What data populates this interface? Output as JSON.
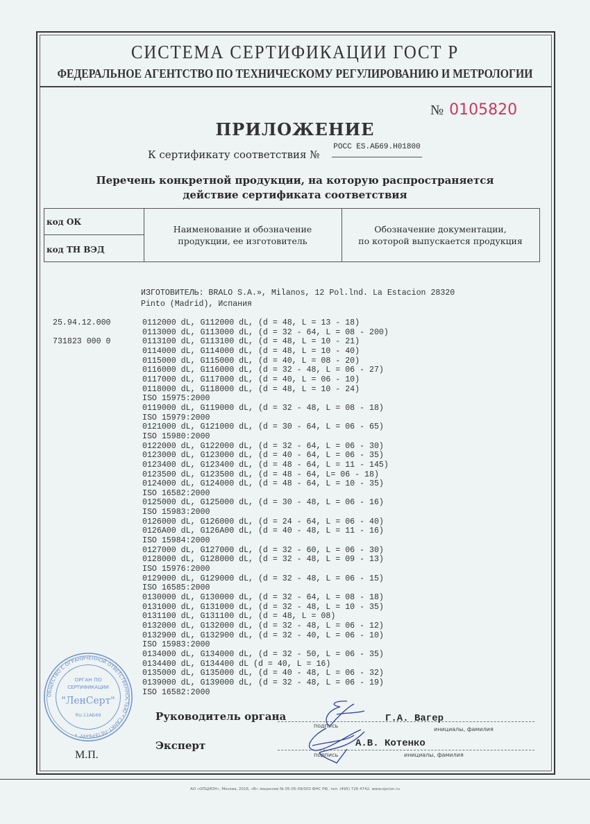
{
  "header": {
    "system": "СИСТЕМА СЕРТИФИКАЦИИ ГОСТ Р",
    "agency": "ФЕДЕРАЛЬНОЕ АГЕНТСТВО ПО ТЕХНИЧЕСКОМУ РЕГУЛИРОВАНИЮ И МЕТРОЛОГИИ",
    "number_sign": "№",
    "number": "0105820",
    "number_color": "#c83a5a"
  },
  "title": "ПРИЛОЖЕНИЕ",
  "certificate": {
    "label": "К сертификату соответствия №",
    "value": "РОСС ES.АБ69.Н01800"
  },
  "subtitle": {
    "line1": "Перечень конкретной продукции, на которую распространяется",
    "line2": "действие сертификата соответствия"
  },
  "table_header": {
    "kod_ok": "код ОК",
    "kod_tn": "код ТН ВЭД",
    "col2_line1": "Наименование и обозначение",
    "col2_line2": "продукции, ее изготовитель",
    "col3_line1": "Обозначение документации,",
    "col3_line2": "по которой выпускается продукция"
  },
  "manufacturer": {
    "line1": "ИЗГОТОВИТЕЛЬ: BRALO S.A.», Milanos, 12 Pol.lnd. La Estacion 28320",
    "line2": "Pinto (Madrid), Испания"
  },
  "codes": {
    "ok": "25.94.12.000",
    "tn_ved": "731823 000 0"
  },
  "products": [
    "0112000 dL, G112000 dL, (d = 48, L = 13 - 18)",
    "0113000 dL, G113000 dL, (d = 32 - 64, L = 08 - 200)",
    "0113100 dL, G113100 dL, (d = 48, L = 10 - 21)",
    "0114000 dL, G114000 dL, (d = 48, L = 10 - 40)",
    "0115000 dL, G115000 dL, (d = 40, L = 08 - 20)",
    "0116000 dL, G116000 dL, (d = 32 - 48, L = 06 - 27)",
    "0117000 dL, G117000 dL, (d = 40, L = 06 - 10)",
    "0118000 dL, G118000 dL, (d = 48, L = 10 - 24)",
    "ISO 15975:2000",
    "0119000 dL, G119000 dL, (d = 32 - 48, L = 08 - 18)",
    "ISO 15979:2000",
    "0121000 dL, G121000 dL, (d = 30 - 64, L = 06 - 65)",
    "ISO 15980:2000",
    "0122000 dL, G122000 dL, (d = 32 - 64, L = 06 - 30)",
    "0123000 dL, G123000 dL, (d = 40 - 64, L = 06 - 35)",
    "0123400 dL, G123400 dL, (d = 48 - 64, L = 11 - 145)",
    "0123500 dL, G123500 dL, (d = 48 - 64, L= 06 - 18)",
    "0124000 dL, G124000 dL, (d = 48 - 64, L = 10 - 35)",
    "ISO 16582:2000",
    "0125000 dL, G125000 dL, (d = 30 - 48, L = 06 - 16)",
    "ISO 15983:2000",
    "0126000 dL, G126000 dL, (d = 24 - 64, L = 06 - 40)",
    "0126A00 dL, G126A00 dL, (d = 40 - 48, L = 11 - 16)",
    "ISO 15984:2000",
    "0127000 dL, G127000 dL, (d = 32 - 60, L = 06 - 30)",
    "0128000 dL, G128000 dL, (d = 32 - 48, L = 09 - 13)",
    "ISO 15976:2000",
    "0129000 dL, G129000 dL, (d = 32 - 48, L = 06 - 15)",
    "ISO 16585:2000",
    "0130000 dL, G130000 dL, (d = 32 - 64, L = 08 - 18)",
    "0131000 dL, G131000 dL, (d = 32 - 48, L = 10 - 35)",
    "0131100 dL, G131100 dL, (d = 48, L = 08)",
    "0132000 dL, G132000 dL, (d = 32 - 48, L = 06 - 12)",
    "0132900 dL, G132900 dL, (d = 32 - 40, L = 06 - 10)",
    "ISO 15983:2000",
    "0134000 dL, G134000 dL, (d = 32 - 50, L = 06 - 35)",
    "0134400 dL, G134400 dL (d = 40, L = 16)",
    "0135000 dL, G135000 dL, (d = 40 - 48, L = 06 - 32)",
    "0139000 dL, G139000 dL, (d = 32 - 48, L = 06 - 19)",
    "ISO 16582:2000"
  ],
  "signatures": {
    "head_label": "Руководитель органа",
    "head_name": "Г.А. Вагер",
    "expert_label": "Эксперт",
    "expert_name": "А.В. Котенко",
    "signature_caption": "подпись",
    "name_caption": "инициалы, фамилия",
    "mp": "М.П."
  },
  "stamp": {
    "text": "ОБЩЕСТВО С ОГРАНИЧЕННОЙ ОТВЕТСТВЕННОСТЬЮ * САНКТ-ПЕТЕРБУРГ *",
    "line1": "ОРГАН ПО",
    "line2": "СЕРТИФИКАЦИИ",
    "name": "\"ЛенСерт\"",
    "reg": "RU.11АБ69",
    "color": "#4a78c0"
  },
  "footer": "АО «ОПЦИОН», Москва, 2016, «В» лицензия № 05-05-09/003 ФНС РФ, тел. (495) 726 4742, www.opcion.ru"
}
